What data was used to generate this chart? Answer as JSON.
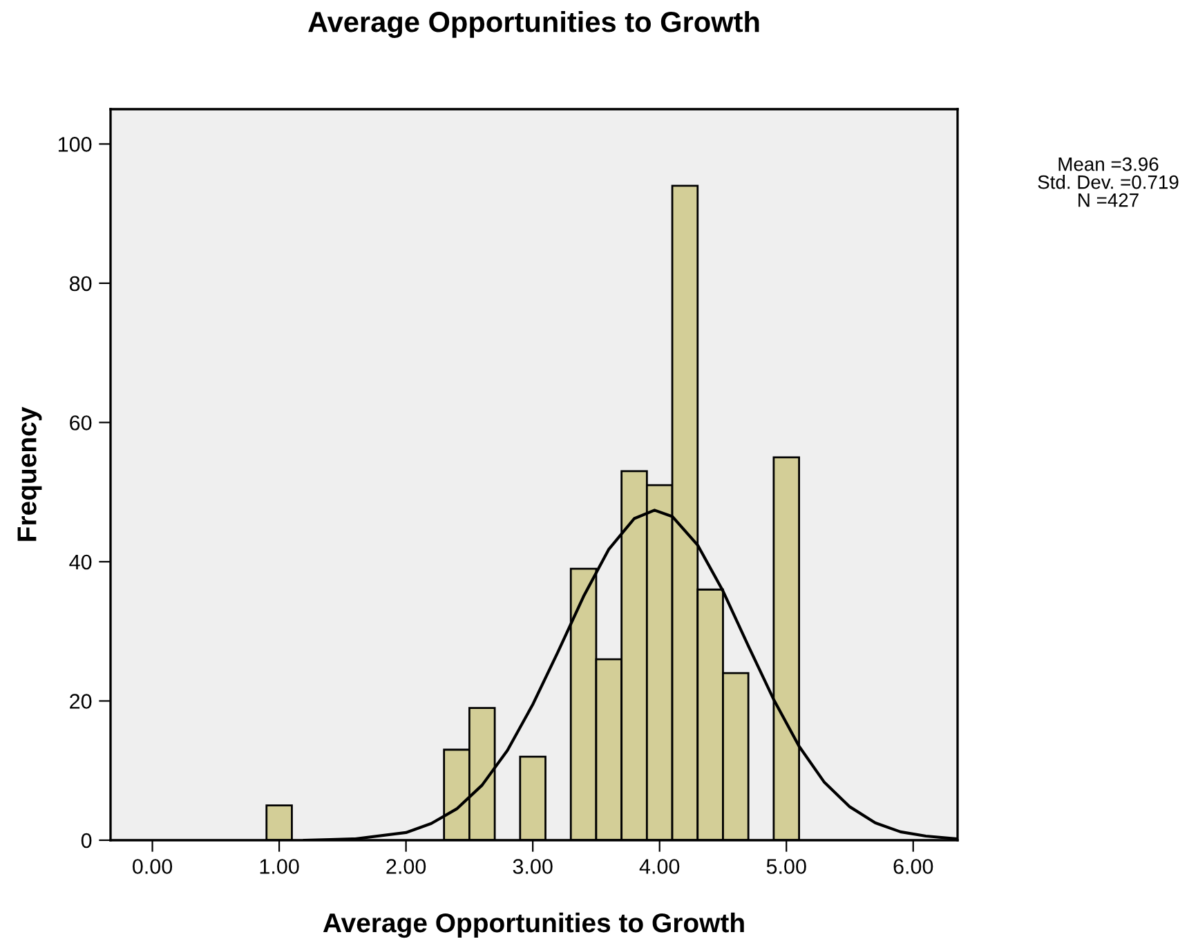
{
  "chart_data": {
    "type": "histogram",
    "title": "Average Opportunities to Growth",
    "xlabel": "Average Opportunities to Growth",
    "ylabel": "Frequency",
    "bins": [
      0.9,
      1.1,
      1.3,
      1.5,
      1.7,
      1.9,
      2.1,
      2.3,
      2.5,
      2.7,
      2.9,
      3.1,
      3.3,
      3.5,
      3.7,
      3.9,
      4.1,
      4.3,
      4.5,
      4.7,
      4.9,
      5.1
    ],
    "values": [
      5,
      0,
      0,
      0,
      0,
      0,
      0,
      13,
      19,
      0,
      12,
      0,
      39,
      26,
      53,
      51,
      94,
      36,
      24,
      0,
      55
    ],
    "color": "#d3ce97",
    "series": [
      {
        "type": "line",
        "color": "#000000",
        "x": [
          1.2,
          1.4,
          1.6,
          2.0,
          2.2,
          2.4,
          2.6,
          2.8,
          3.0,
          3.2,
          3.4,
          3.6,
          3.8,
          3.96,
          4.1,
          4.3,
          4.5,
          4.7,
          4.9,
          5.1,
          5.3,
          5.5,
          5.7,
          5.9,
          6.1,
          6.35
        ],
        "values": [
          0.0,
          0.1,
          0.2,
          1.1,
          2.4,
          4.5,
          7.9,
          12.9,
          19.5,
          27.1,
          35.0,
          41.8,
          46.2,
          47.4,
          46.5,
          42.4,
          35.8,
          27.9,
          20.2,
          13.5,
          8.3,
          4.8,
          2.5,
          1.2,
          0.6,
          0.2
        ]
      }
    ],
    "xlim": [
      -0.33,
      6.35
    ],
    "ylim": [
      0,
      105
    ],
    "xticks": [
      {
        "value": 0,
        "label": "0.00"
      },
      {
        "value": 1,
        "label": "1.00"
      },
      {
        "value": 2,
        "label": "2.00"
      },
      {
        "value": 3,
        "label": "3.00"
      },
      {
        "value": 4,
        "label": "4.00"
      },
      {
        "value": 5,
        "label": "5.00"
      },
      {
        "value": 6,
        "label": "6.00"
      }
    ],
    "yticks": [
      0,
      20,
      40,
      60,
      80,
      100
    ],
    "grid": false,
    "legend": false,
    "annotations": [
      "Mean =3.96",
      "Std. Dev. =0.719",
      "N =427"
    ]
  }
}
